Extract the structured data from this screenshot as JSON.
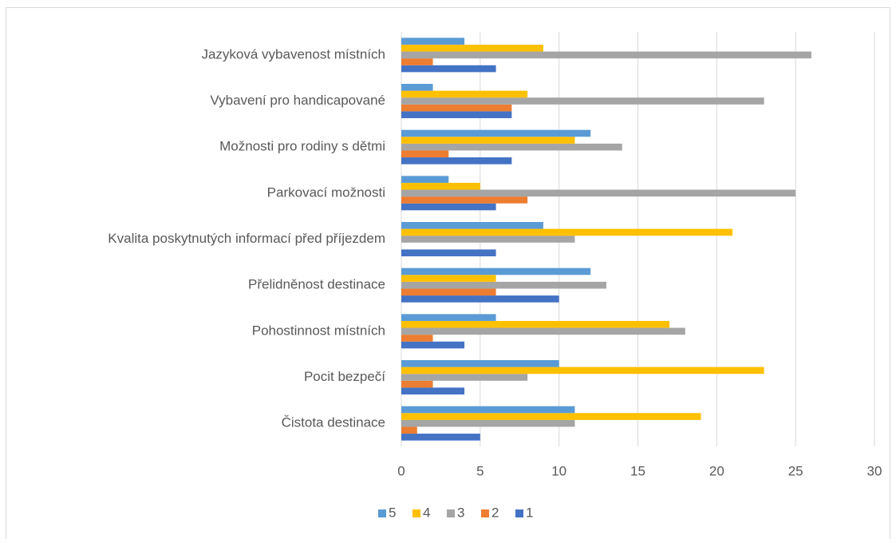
{
  "chart_data": {
    "type": "bar",
    "orientation": "horizontal",
    "categories": [
      "Čistota destinace",
      "Pocit bezpečí",
      "Pohostinnost místních",
      "Přelidněnost destinace",
      "Kvalita poskytnutých informací před příjezdem",
      "Parkovací možnosti",
      "Možnosti pro rodiny s dětmi",
      "Vybavení pro handicapované",
      "Jazyková vybavenost místních"
    ],
    "series": [
      {
        "name": "1",
        "color": "#4472c4",
        "values": [
          5,
          4,
          4,
          10,
          6,
          6,
          7,
          7,
          6
        ]
      },
      {
        "name": "2",
        "color": "#ed7d31",
        "values": [
          1,
          2,
          2,
          6,
          0,
          8,
          3,
          7,
          2
        ]
      },
      {
        "name": "3",
        "color": "#a5a5a5",
        "values": [
          11,
          8,
          18,
          13,
          11,
          25,
          14,
          23,
          26
        ]
      },
      {
        "name": "4",
        "color": "#ffc000",
        "values": [
          19,
          23,
          17,
          6,
          21,
          5,
          11,
          8,
          9
        ]
      },
      {
        "name": "5",
        "color": "#5b9bd5",
        "values": [
          11,
          10,
          6,
          12,
          9,
          3,
          12,
          2,
          4
        ]
      }
    ],
    "xlim": [
      0,
      30
    ],
    "xticks": [
      0,
      5,
      10,
      15,
      20,
      25,
      30
    ],
    "grid": true,
    "legend": "bottom"
  }
}
